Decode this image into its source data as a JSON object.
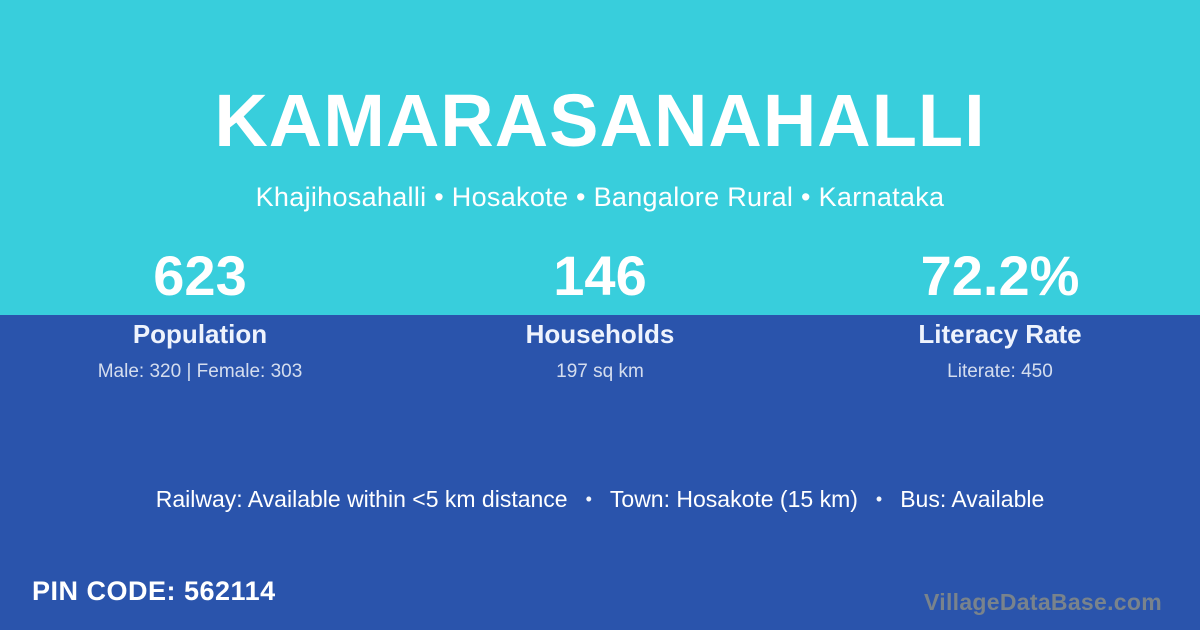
{
  "header": {
    "title": "KAMARASANAHALLI",
    "subtitle": "Khajihosahalli • Hosakote • Bangalore Rural • Karnataka"
  },
  "stats": [
    {
      "value": "623",
      "label": "Population",
      "detail": "Male: 320 | Female: 303"
    },
    {
      "value": "146",
      "label": "Households",
      "detail": "197 sq km"
    },
    {
      "value": "72.2%",
      "label": "Literacy Rate",
      "detail": "Literate: 450"
    }
  ],
  "amenities": {
    "railway": "Railway: Available within <5 km distance",
    "town": "Town: Hosakote (15 km)",
    "bus": "Bus: Available",
    "separator": "•"
  },
  "footer": {
    "pin_code": "PIN CODE: 562114",
    "watermark": "VillageDataBase.com"
  },
  "colors": {
    "top_background": "#38CEDC",
    "bottom_background": "#2A54AC",
    "text": "#FFFFFF",
    "watermark_text": "#79838C"
  }
}
